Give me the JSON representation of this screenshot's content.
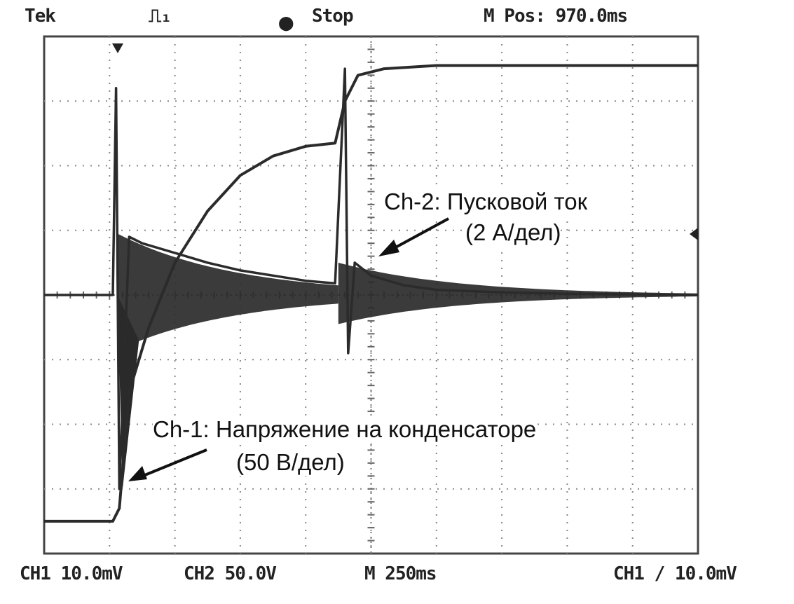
{
  "header": {
    "brand": "Tek",
    "trigger_symbol": "⎍₁",
    "run_state": "Stop",
    "position": "M Pos: 970.0ms"
  },
  "footer": {
    "ch1_scale": "CH1  10.0mV",
    "ch2_scale": "CH2  50.0V",
    "time_base": "M 250ms",
    "trigger": "CH1  ∕  10.0mV"
  },
  "annotations": {
    "ch2_title": "Ch-2: Пусковой ток",
    "ch2_scale": "(2 А/дел)",
    "ch1_title": "Ch-1: Напряжение на конденсаторе",
    "ch1_scale": "(50 В/дел)"
  },
  "chart_data": {
    "type": "line",
    "grid": true,
    "divisions": {
      "x": 10,
      "y": 8
    },
    "x_unit": "div",
    "series": [
      {
        "name": "Ch-1: Напряжение на конденсаторе",
        "points": [
          [
            0,
            -3.5
          ],
          [
            1.05,
            -3.5
          ],
          [
            1.15,
            -3.3
          ],
          [
            1.3,
            -1.5
          ],
          [
            1.6,
            -0.5
          ],
          [
            2.0,
            0.5
          ],
          [
            2.5,
            1.3
          ],
          [
            3.0,
            1.85
          ],
          [
            3.5,
            2.15
          ],
          [
            4.0,
            2.3
          ],
          [
            4.45,
            2.35
          ],
          [
            4.6,
            3.0
          ],
          [
            4.8,
            3.4
          ],
          [
            5.2,
            3.5
          ],
          [
            6.0,
            3.55
          ],
          [
            7.0,
            3.55
          ],
          [
            8.0,
            3.55
          ],
          [
            10.0,
            3.55
          ]
        ]
      },
      {
        "name": "Ch-2: Пусковой ток",
        "points": [
          [
            0,
            0
          ],
          [
            1.05,
            0
          ],
          [
            1.1,
            3.2
          ],
          [
            1.15,
            -3.0
          ],
          [
            1.3,
            0.9
          ],
          [
            1.5,
            0.8
          ],
          [
            2.0,
            0.65
          ],
          [
            2.5,
            0.5
          ],
          [
            3.0,
            0.38
          ],
          [
            3.5,
            0.3
          ],
          [
            4.0,
            0.22
          ],
          [
            4.45,
            0.18
          ],
          [
            4.6,
            3.5
          ],
          [
            4.65,
            -0.9
          ],
          [
            4.75,
            0.5
          ],
          [
            5.0,
            0.3
          ],
          [
            5.5,
            0.15
          ],
          [
            6.0,
            0.08
          ],
          [
            7.0,
            0.04
          ],
          [
            8.0,
            0.02
          ],
          [
            10.0,
            0.0
          ]
        ]
      }
    ]
  }
}
